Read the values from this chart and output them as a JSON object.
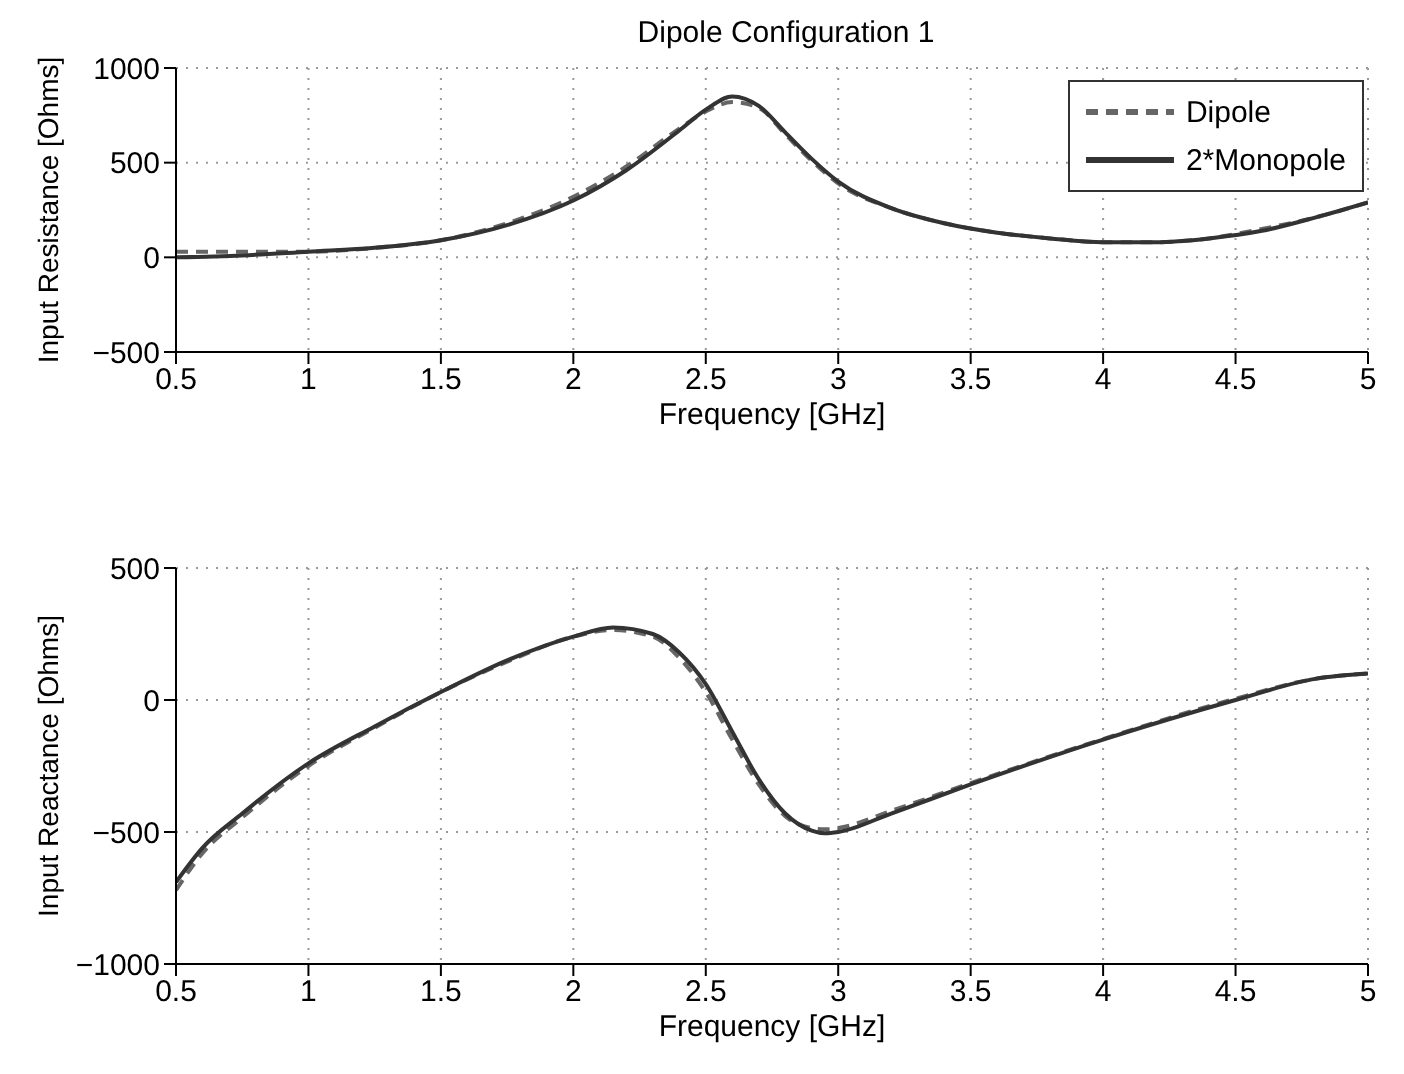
{
  "chart_data": [
    {
      "type": "line",
      "title": "Dipole Configuration 1",
      "xlabel": "Frequency [GHz]",
      "ylabel": "Input Resistance [Ohms]",
      "xlim": [
        0.5,
        5
      ],
      "xticks": [
        0.5,
        1,
        1.5,
        2,
        2.5,
        3,
        3.5,
        4,
        4.5,
        5
      ],
      "ylim": [
        -500,
        1000
      ],
      "yticks": [
        -500,
        0,
        500,
        1000
      ],
      "grid": true,
      "legend": "top right",
      "marker": "none",
      "x": [
        0.5,
        0.75,
        1.0,
        1.25,
        1.5,
        1.75,
        2.0,
        2.2,
        2.4,
        2.5,
        2.6,
        2.7,
        2.8,
        2.9,
        3.0,
        3.2,
        3.4,
        3.6,
        3.8,
        4.0,
        4.2,
        4.4,
        4.6,
        4.8,
        5.0
      ],
      "series": [
        {
          "name": "Dipole",
          "color": "#666666",
          "line_style": "dashed",
          "values": [
            30,
            30,
            30,
            50,
            90,
            180,
            320,
            480,
            680,
            770,
            820,
            790,
            650,
            510,
            390,
            260,
            180,
            130,
            100,
            80,
            80,
            100,
            150,
            210,
            290
          ]
        },
        {
          "name": "2*Monopole",
          "color": "#333333",
          "line_style": "solid",
          "values": [
            0,
            10,
            30,
            50,
            90,
            170,
            300,
            460,
            670,
            780,
            850,
            800,
            660,
            520,
            400,
            260,
            180,
            130,
            100,
            80,
            80,
            100,
            140,
            210,
            290
          ]
        }
      ]
    },
    {
      "type": "line",
      "xlabel": "Frequency [GHz]",
      "ylabel": "Input Reactance [Ohms]",
      "xlim": [
        0.5,
        5
      ],
      "xticks": [
        0.5,
        1,
        1.5,
        2,
        2.5,
        3,
        3.5,
        4,
        4.5,
        5
      ],
      "ylim": [
        -1000,
        500
      ],
      "yticks": [
        -1000,
        -500,
        0,
        500
      ],
      "grid": true,
      "marker": "none",
      "x": [
        0.5,
        0.6,
        0.75,
        1.0,
        1.25,
        1.5,
        1.75,
        2.0,
        2.15,
        2.3,
        2.4,
        2.5,
        2.6,
        2.7,
        2.8,
        2.9,
        2.95,
        3.0,
        3.2,
        3.5,
        4.0,
        4.5,
        4.8,
        5.0
      ],
      "series": [
        {
          "color": "#666666",
          "line_style": "dashed",
          "values": [
            -720,
            -580,
            -445,
            -250,
            -105,
            30,
            145,
            240,
            265,
            240,
            160,
            30,
            -150,
            -320,
            -440,
            -485,
            -490,
            -485,
            -420,
            -315,
            -148,
            5,
            80,
            100
          ]
        },
        {
          "color": "#333333",
          "line_style": "solid",
          "values": [
            -690,
            -560,
            -430,
            -240,
            -100,
            30,
            150,
            240,
            275,
            250,
            180,
            60,
            -120,
            -300,
            -430,
            -495,
            -505,
            -500,
            -430,
            -320,
            -150,
            0,
            80,
            100
          ]
        }
      ]
    }
  ]
}
